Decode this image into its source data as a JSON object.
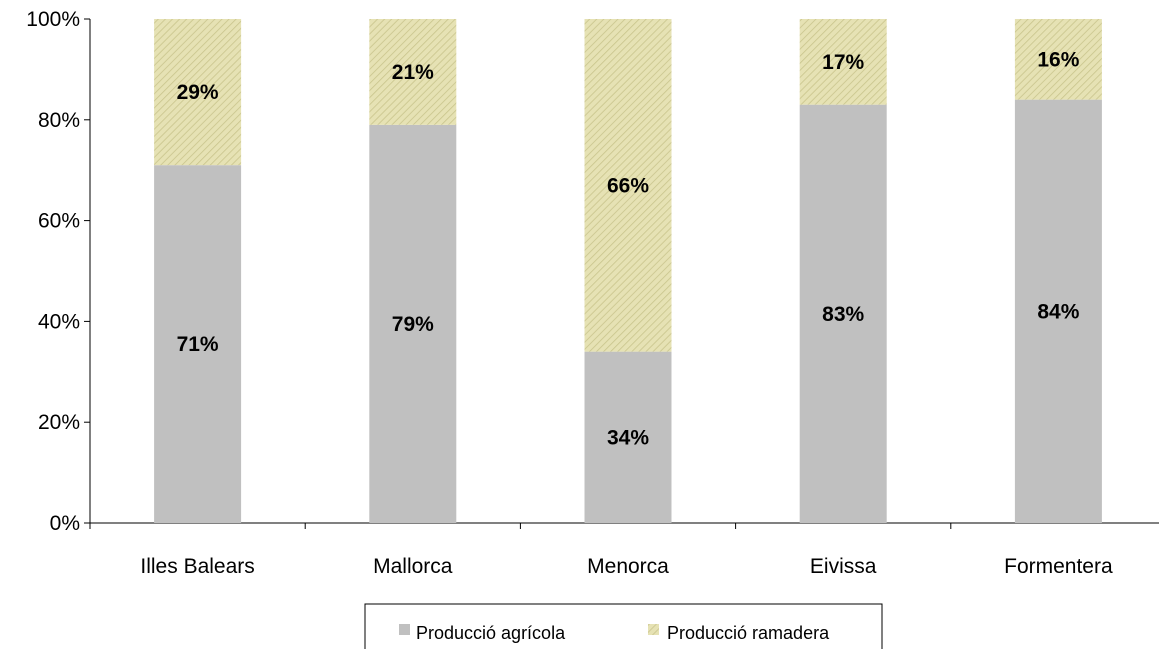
{
  "chart_data": {
    "type": "bar",
    "stacked": true,
    "percent_stacked": true,
    "categories": [
      "Illes Balears",
      "Mallorca",
      "Menorca",
      "Eivissa",
      "Formentera"
    ],
    "series": [
      {
        "name": "Producció agrícola",
        "values": [
          71,
          79,
          34,
          83,
          84
        ],
        "labels": [
          "71%",
          "79%",
          "34%",
          "83%",
          "84%"
        ],
        "color": "#c0c0c0"
      },
      {
        "name": "Producció ramadera",
        "values": [
          29,
          21,
          66,
          17,
          16
        ],
        "labels": [
          "29%",
          "21%",
          "66%",
          "17%",
          "16%"
        ],
        "color": "#e4e0b0",
        "pattern": "diagonal-hatch"
      }
    ],
    "ylim": [
      0,
      100
    ],
    "yticks": [
      "0%",
      "20%",
      "40%",
      "60%",
      "80%",
      "100%"
    ],
    "grid": false,
    "legend_position": "bottom"
  }
}
